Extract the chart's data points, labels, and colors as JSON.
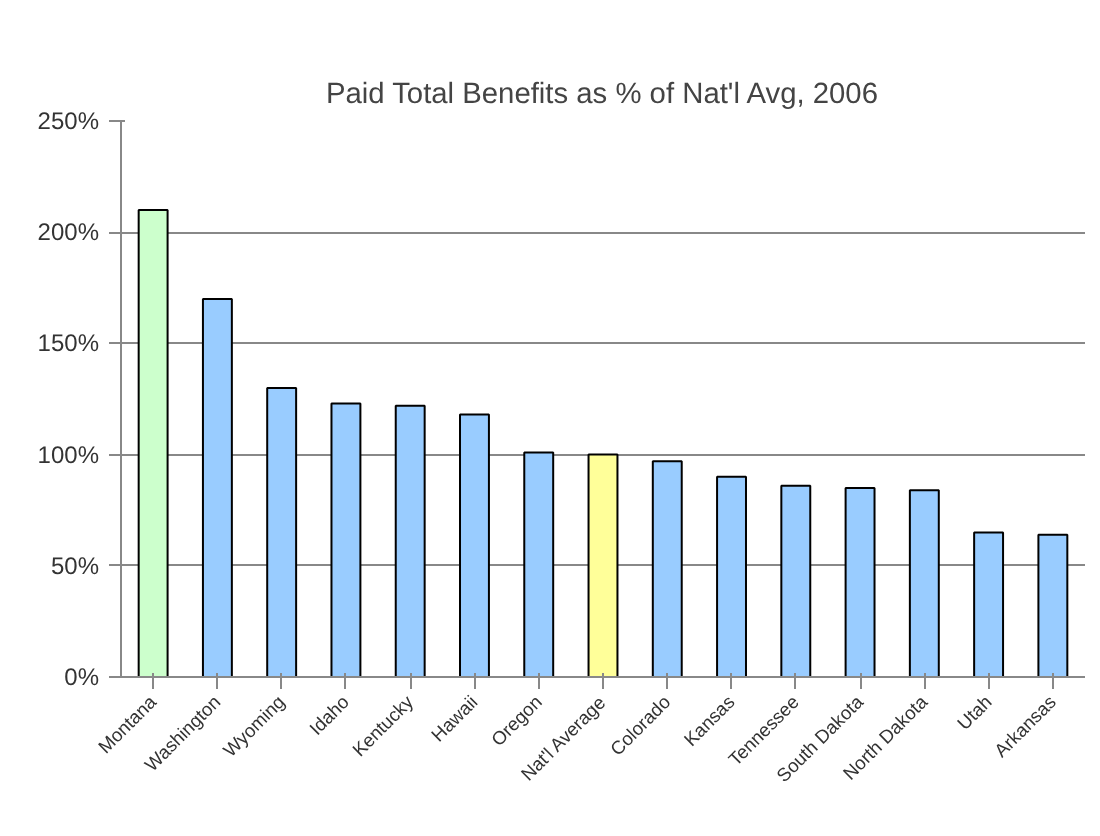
{
  "chart_data": {
    "type": "bar",
    "title": "Paid Total Benefits as % of Nat'l Avg, 2006",
    "categories": [
      "Montana",
      "Washington",
      "Wyoming",
      "Idaho",
      "Kentucky",
      "Hawaii",
      "Oregon",
      "Nat'l Average",
      "Colorado",
      "Kansas",
      "Tennessee",
      "South Dakota",
      "North Dakota",
      "Utah",
      "Arkansas"
    ],
    "values": [
      210,
      170,
      130,
      123,
      122,
      118,
      101,
      100,
      97,
      90,
      86,
      85,
      84,
      65,
      64
    ],
    "colors": [
      "#ccffcc",
      "#99ccff",
      "#99ccff",
      "#99ccff",
      "#99ccff",
      "#99ccff",
      "#99ccff",
      "#ffff99",
      "#99ccff",
      "#99ccff",
      "#99ccff",
      "#99ccff",
      "#99ccff",
      "#99ccff",
      "#99ccff"
    ],
    "ylim": [
      0,
      250
    ],
    "yticks": [
      {
        "value": 0,
        "label": "0%"
      },
      {
        "value": 50,
        "label": "50%"
      },
      {
        "value": 100,
        "label": "100%"
      },
      {
        "value": 150,
        "label": "150%"
      },
      {
        "value": 200,
        "label": "200%"
      },
      {
        "value": 250,
        "label": "250%"
      }
    ],
    "grid": "y"
  }
}
